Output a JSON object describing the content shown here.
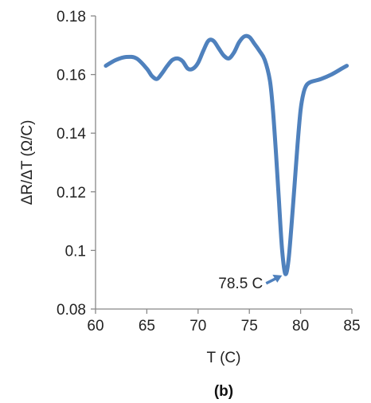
{
  "chart_data": {
    "type": "line",
    "xlabel": "T (C)",
    "ylabel": "ΔR/ΔT (Ω/C)",
    "panel_label": "(b)",
    "xlim": [
      60,
      85
    ],
    "ylim": [
      0.08,
      0.18
    ],
    "x_ticks": [
      60,
      65,
      70,
      75,
      80,
      85
    ],
    "y_ticks": [
      0.08,
      0.1,
      0.12,
      0.14,
      0.16,
      0.18
    ],
    "x_tick_labels": [
      "60",
      "65",
      "70",
      "75",
      "80",
      "85"
    ],
    "y_tick_labels": [
      "0.08",
      "0.1",
      "0.12",
      "0.14",
      "0.16",
      "0.18"
    ],
    "grid": false,
    "line_color": "#4f81bd",
    "series": [
      {
        "x": [
          61.0,
          62.0,
          63.0,
          64.0,
          65.0,
          65.5,
          66.0,
          66.5,
          67.0,
          67.5,
          68.0,
          68.5,
          69.0,
          69.5,
          70.0,
          70.5,
          71.0,
          71.5,
          72.0,
          72.5,
          73.0,
          73.5,
          74.0,
          74.5,
          75.0,
          75.5,
          76.0,
          76.5,
          77.0,
          77.3,
          77.6,
          77.9,
          78.2,
          78.5,
          78.8,
          79.1,
          79.4,
          79.7,
          80.0,
          80.3,
          80.6,
          81.0,
          81.5,
          82.0,
          83.0,
          84.0,
          84.5
        ],
        "y": [
          0.163,
          0.165,
          0.166,
          0.1655,
          0.162,
          0.1595,
          0.1585,
          0.1605,
          0.163,
          0.165,
          0.1655,
          0.1645,
          0.162,
          0.162,
          0.164,
          0.168,
          0.1715,
          0.1715,
          0.169,
          0.1665,
          0.1655,
          0.1675,
          0.171,
          0.173,
          0.1728,
          0.1705,
          0.168,
          0.165,
          0.158,
          0.148,
          0.133,
          0.116,
          0.1,
          0.092,
          0.096,
          0.108,
          0.122,
          0.136,
          0.148,
          0.154,
          0.1565,
          0.1575,
          0.158,
          0.1585,
          0.16,
          0.162,
          0.163
        ]
      }
    ],
    "annotations": [
      {
        "text": "78.5 C",
        "x": 78.5,
        "y": 0.092
      }
    ]
  }
}
